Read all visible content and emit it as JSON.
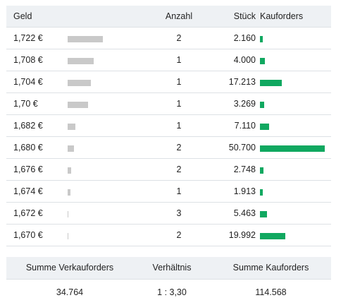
{
  "orderbook": {
    "headers": {
      "price": "Geld",
      "count": "Anzahl",
      "pieces": "Stück",
      "buy_orders": "Kauforders"
    },
    "rows": [
      {
        "price": "1,722 €",
        "count": "2",
        "pieces": "2.160",
        "sell_depth": 0.64,
        "buy_depth": 0.04
      },
      {
        "price": "1,708 €",
        "count": "1",
        "pieces": "4.000",
        "sell_depth": 0.48,
        "buy_depth": 0.08
      },
      {
        "price": "1,704 €",
        "count": "1",
        "pieces": "17.213",
        "sell_depth": 0.42,
        "buy_depth": 0.34
      },
      {
        "price": "1,70 €",
        "count": "1",
        "pieces": "3.269",
        "sell_depth": 0.37,
        "buy_depth": 0.06
      },
      {
        "price": "1,682 €",
        "count": "1",
        "pieces": "7.110",
        "sell_depth": 0.14,
        "buy_depth": 0.14
      },
      {
        "price": "1,680 €",
        "count": "2",
        "pieces": "50.700",
        "sell_depth": 0.12,
        "buy_depth": 1.0
      },
      {
        "price": "1,676 €",
        "count": "2",
        "pieces": "2.748",
        "sell_depth": 0.06,
        "buy_depth": 0.05
      },
      {
        "price": "1,674 €",
        "count": "1",
        "pieces": "1.913",
        "sell_depth": 0.05,
        "buy_depth": 0.04
      },
      {
        "price": "1,672 €",
        "count": "3",
        "pieces": "5.463",
        "sell_depth": 0.01,
        "buy_depth": 0.11
      },
      {
        "price": "1,670 €",
        "count": "2",
        "pieces": "19.992",
        "sell_depth": 0.01,
        "buy_depth": 0.39
      }
    ]
  },
  "summary": {
    "headers": {
      "sell_total": "Summe Verkauforders",
      "ratio": "Verhältnis",
      "buy_total": "Summe Kauforders"
    },
    "values": {
      "sell_total": "34.764",
      "ratio": "1 : 3,30",
      "buy_total": "114.568"
    }
  },
  "colors": {
    "buy_bar": "#10a860",
    "sell_bar": "#c9c9c9",
    "header_background": "#eef1f4"
  }
}
